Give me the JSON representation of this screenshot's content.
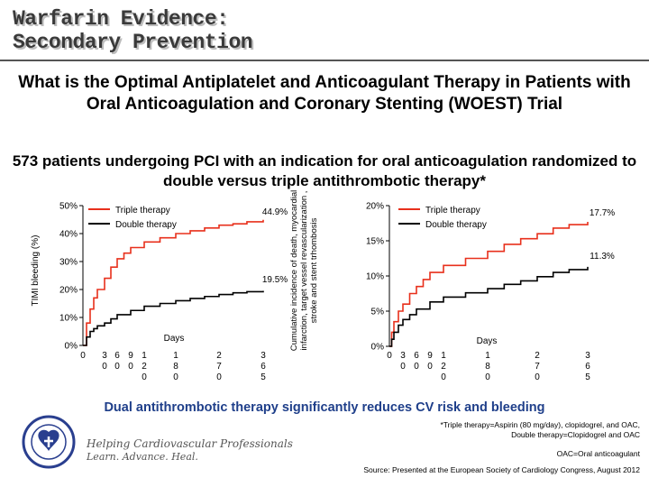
{
  "slide": {
    "title_line1": "Warfarin Evidence:",
    "title_line2": "Secondary Prevention",
    "subtitle": "What is the Optimal Antiplatelet and Anticoagulant Therapy in Patients with Oral Anticoagulation and Coronary Stenting (WOEST) Trial",
    "study_description": "573 patients undergoing PCI with an indication for oral anticoagulation randomized to double versus triple antithrombotic therapy*",
    "conclusion": "Dual antithrombotic therapy significantly reduces CV risk and bleeding",
    "footnote_triple": "*Triple therapy=Aspirin (80 mg/day), clopidogrel, and OAC, Double therapy=Clopidogrel and OAC",
    "footnote_oac": "OAC=Oral anticoagulant",
    "source": "Source: Presented at the European Society of Cardiology Congress, August 2012",
    "org_line1": "Helping Cardiovascular Professionals",
    "org_line2": "Learn. Advance. Heal."
  },
  "colors": {
    "triple": "#e8301c",
    "double": "#000000",
    "conclusion": "#1f3f8a"
  },
  "chart_data": [
    {
      "type": "line",
      "ylabel": "TIMI bleeding (%)",
      "xlabel": "Days",
      "ylim": [
        0,
        50
      ],
      "yticks": [
        0,
        10,
        20,
        30,
        40,
        50
      ],
      "ytick_labels": [
        "0%",
        "10%",
        "20%",
        "30%",
        "40%",
        "50%"
      ],
      "xlim": [
        0,
        365
      ],
      "xticks": [
        0,
        30,
        60,
        90,
        120,
        180,
        270,
        365
      ],
      "xtick_labels": [
        "0",
        "30",
        "60",
        "90",
        "120",
        "180",
        "270",
        "365"
      ],
      "legend": [
        "Triple therapy",
        "Double therapy"
      ],
      "legend_position": "top-left",
      "annotations": [
        "44.9%",
        "19.5%"
      ],
      "series": [
        {
          "name": "Triple therapy",
          "x": [
            0,
            5,
            10,
            15,
            20,
            30,
            45,
            60,
            75,
            90,
            120,
            150,
            180,
            210,
            240,
            270,
            300,
            330,
            365
          ],
          "values": [
            0,
            8,
            13,
            17,
            20,
            24,
            28,
            31,
            33,
            35,
            37,
            38.5,
            40,
            41,
            42,
            43,
            43.5,
            44.2,
            44.9
          ]
        },
        {
          "name": "Double therapy",
          "x": [
            0,
            5,
            10,
            15,
            20,
            30,
            45,
            60,
            90,
            120,
            150,
            180,
            210,
            240,
            270,
            300,
            330,
            365
          ],
          "values": [
            0,
            3,
            5,
            6,
            7,
            8,
            9.5,
            11,
            12.5,
            14,
            15,
            16,
            16.8,
            17.5,
            18.2,
            18.8,
            19.2,
            19.5
          ]
        }
      ]
    },
    {
      "type": "line",
      "ylabel": "Cumulative incidence of death, myocardial infarction, target vessel revascularization , stroke and stent trhombosis",
      "xlabel": "Days",
      "ylim": [
        0,
        20
      ],
      "yticks": [
        0,
        5,
        10,
        15,
        20
      ],
      "ytick_labels": [
        "0%",
        "5%",
        "10%",
        "15%",
        "20%"
      ],
      "xlim": [
        0,
        365
      ],
      "xticks": [
        0,
        30,
        60,
        90,
        120,
        180,
        270,
        365
      ],
      "xtick_labels": [
        "0",
        "30",
        "60",
        "90",
        "120",
        "180",
        "270",
        "365"
      ],
      "legend": [
        "Triple therapy",
        "Double therapy"
      ],
      "legend_position": "top-left",
      "annotations": [
        "17.7%",
        "11.3%"
      ],
      "series": [
        {
          "name": "Triple therapy",
          "x": [
            0,
            5,
            10,
            20,
            30,
            45,
            60,
            75,
            90,
            120,
            150,
            180,
            210,
            240,
            270,
            300,
            330,
            365
          ],
          "values": [
            0,
            2,
            3.5,
            5,
            6,
            7.5,
            8.5,
            9.5,
            10.5,
            11.5,
            12.5,
            13.5,
            14.5,
            15.3,
            16,
            16.8,
            17.3,
            17.7
          ]
        },
        {
          "name": "Double therapy",
          "x": [
            0,
            5,
            10,
            20,
            30,
            45,
            60,
            90,
            120,
            150,
            180,
            210,
            240,
            270,
            300,
            330,
            365
          ],
          "values": [
            0,
            1,
            2,
            3,
            3.8,
            4.5,
            5.3,
            6.3,
            7,
            7.6,
            8.2,
            8.8,
            9.3,
            9.9,
            10.5,
            10.9,
            11.3
          ]
        }
      ]
    }
  ]
}
